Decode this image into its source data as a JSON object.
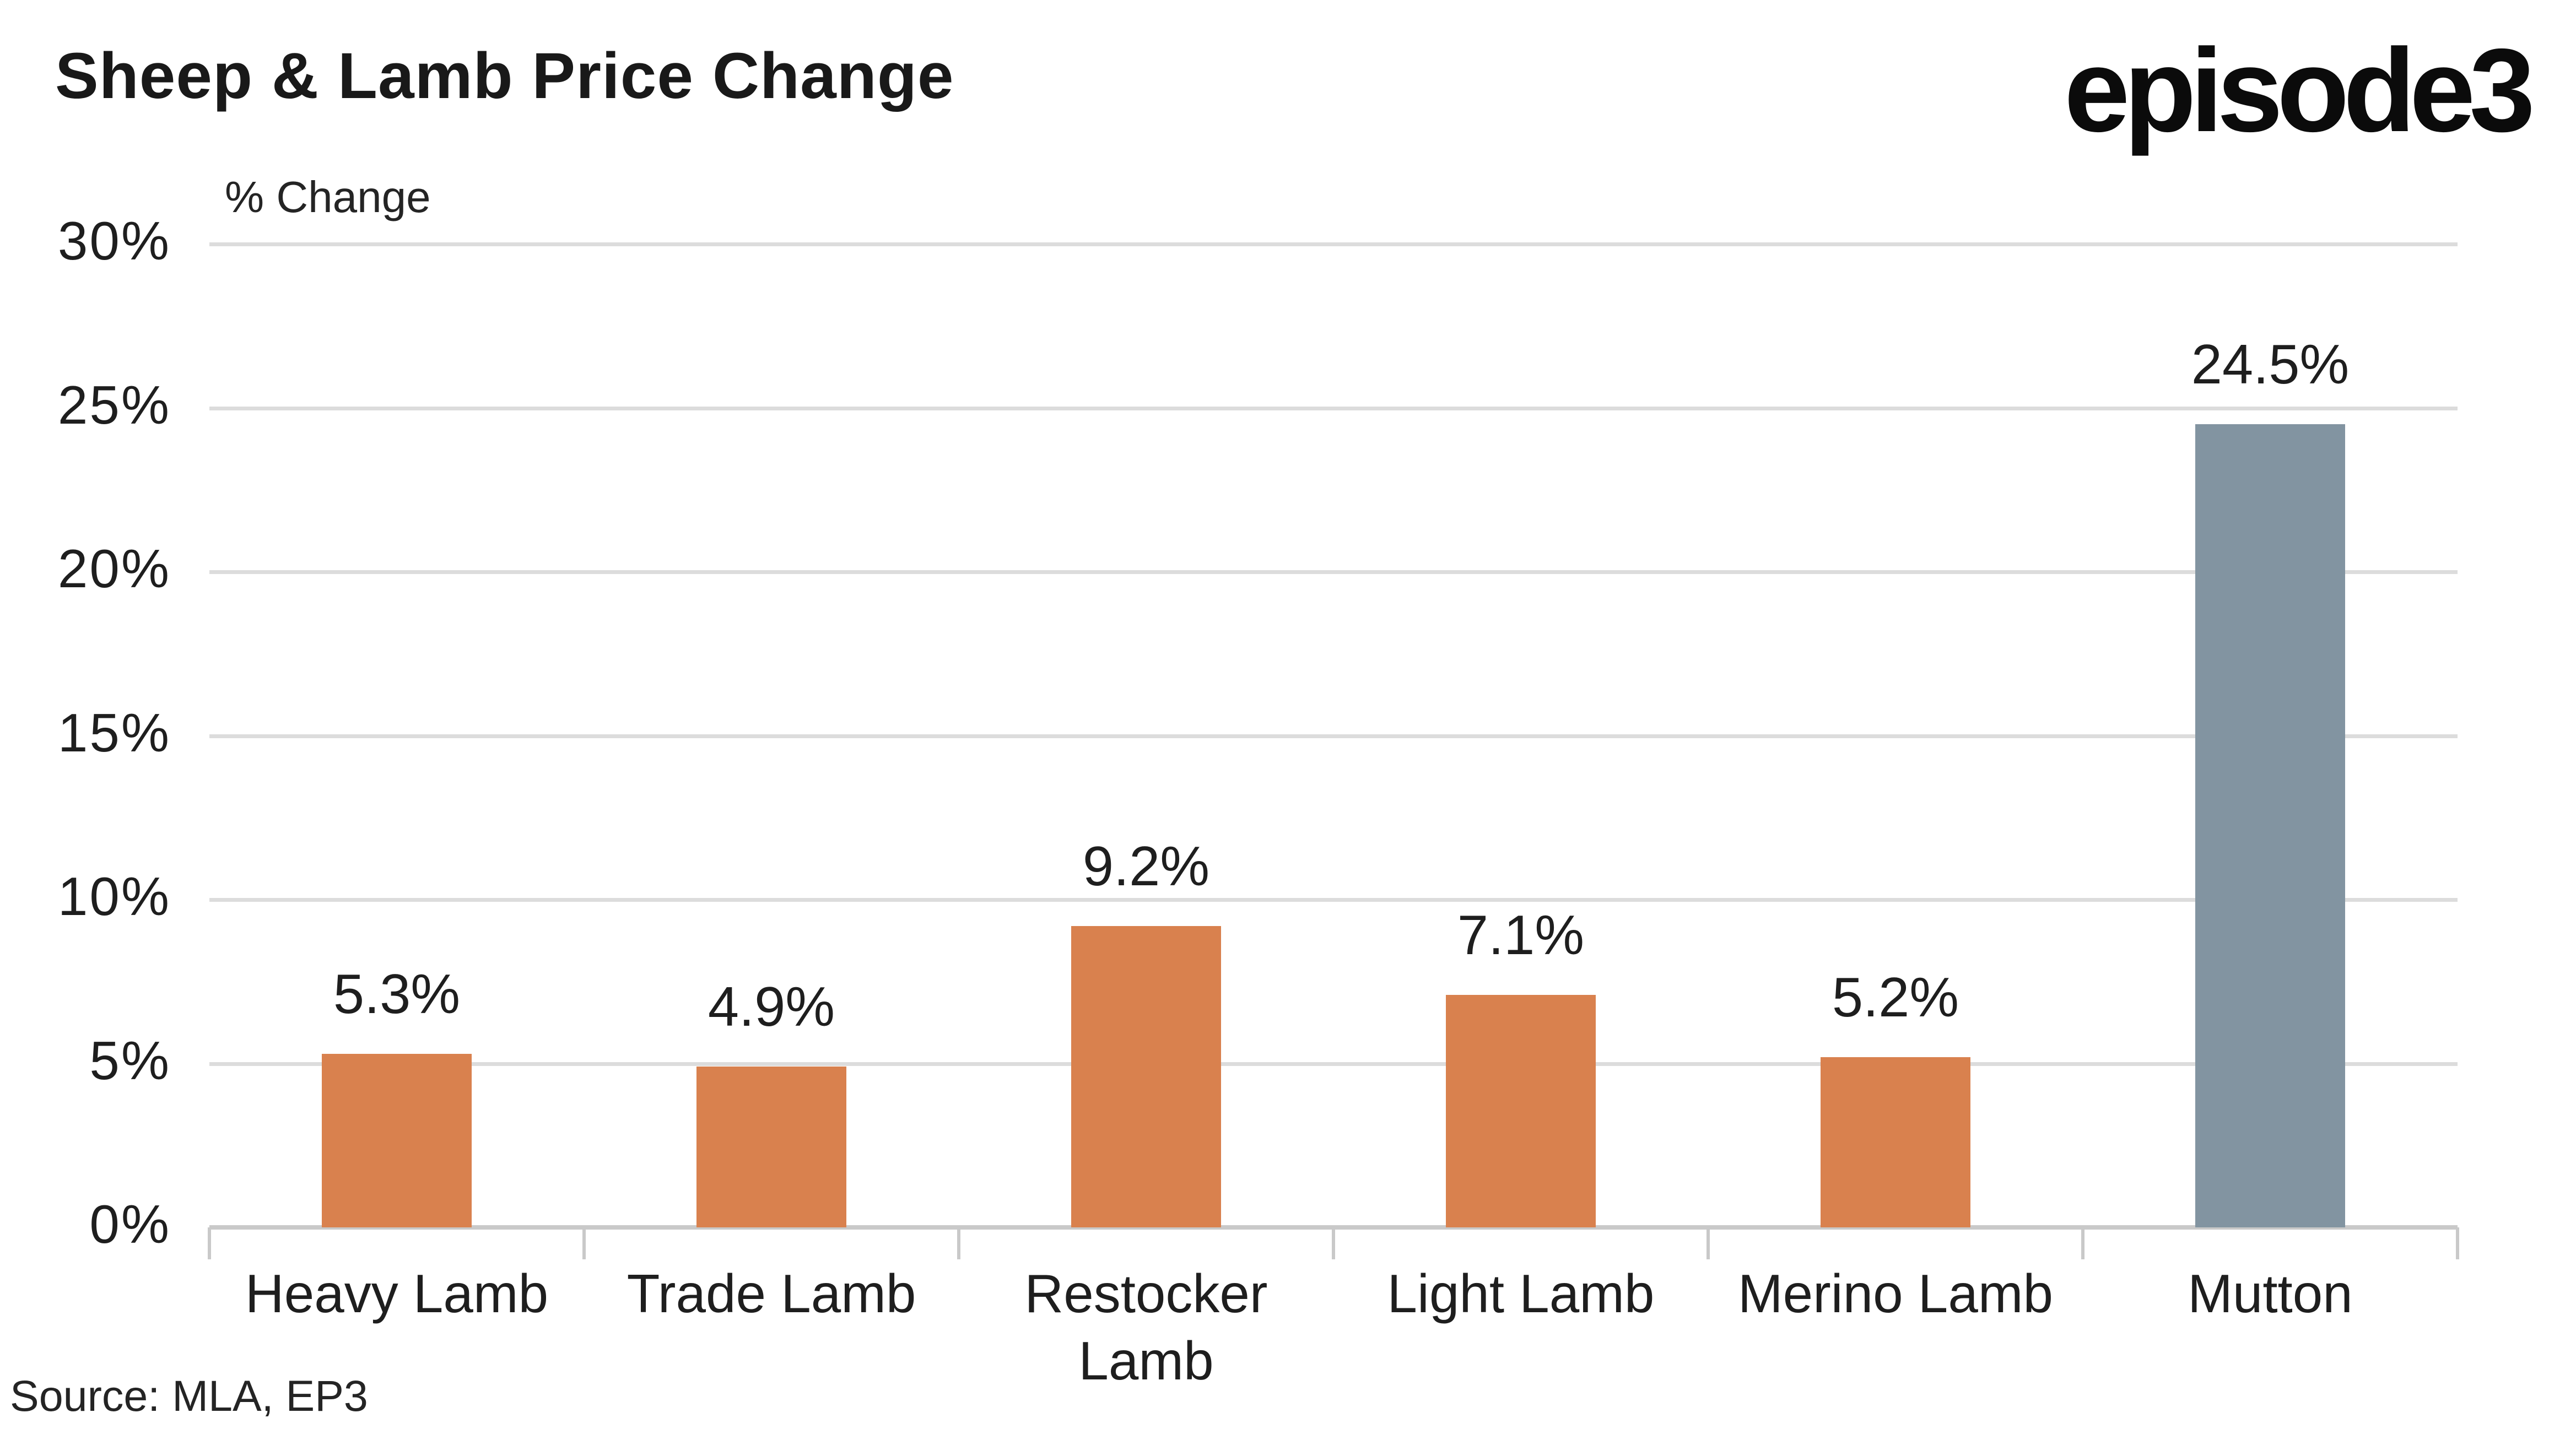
{
  "header": {
    "title": "Sheep & Lamb Price Change",
    "logo_text": "episode3"
  },
  "footer": {
    "source": "Source: MLA, EP3"
  },
  "chart_data": {
    "type": "bar",
    "title": "Sheep & Lamb Price Change",
    "xlabel": "",
    "ylabel": "% Change",
    "categories": [
      "Heavy Lamb",
      "Trade Lamb",
      "Restocker Lamb",
      "Light Lamb",
      "Merino Lamb",
      "Mutton"
    ],
    "values": [
      5.3,
      4.9,
      9.2,
      7.1,
      5.2,
      24.5
    ],
    "data_labels": [
      "5.3%",
      "4.9%",
      "9.2%",
      "7.1%",
      "5.2%",
      "24.5%"
    ],
    "bar_colors": [
      "#D9814E",
      "#D9814E",
      "#D9814E",
      "#D9814E",
      "#D9814E",
      "#8294A1"
    ],
    "ylim": [
      0,
      30
    ],
    "ytick_step": 5,
    "ytick_labels": [
      "0%",
      "5%",
      "10%",
      "15%",
      "20%",
      "25%",
      "30%"
    ],
    "grid": "horizontal",
    "legend": "none",
    "colors": {
      "bar_orange": "#D9814E",
      "bar_gray_blue": "#8294A1",
      "gridline": "#DCDCDC",
      "axis_line": "#C9C9C9",
      "text": "#1E1E1E",
      "background": "#FFFFFF"
    }
  }
}
